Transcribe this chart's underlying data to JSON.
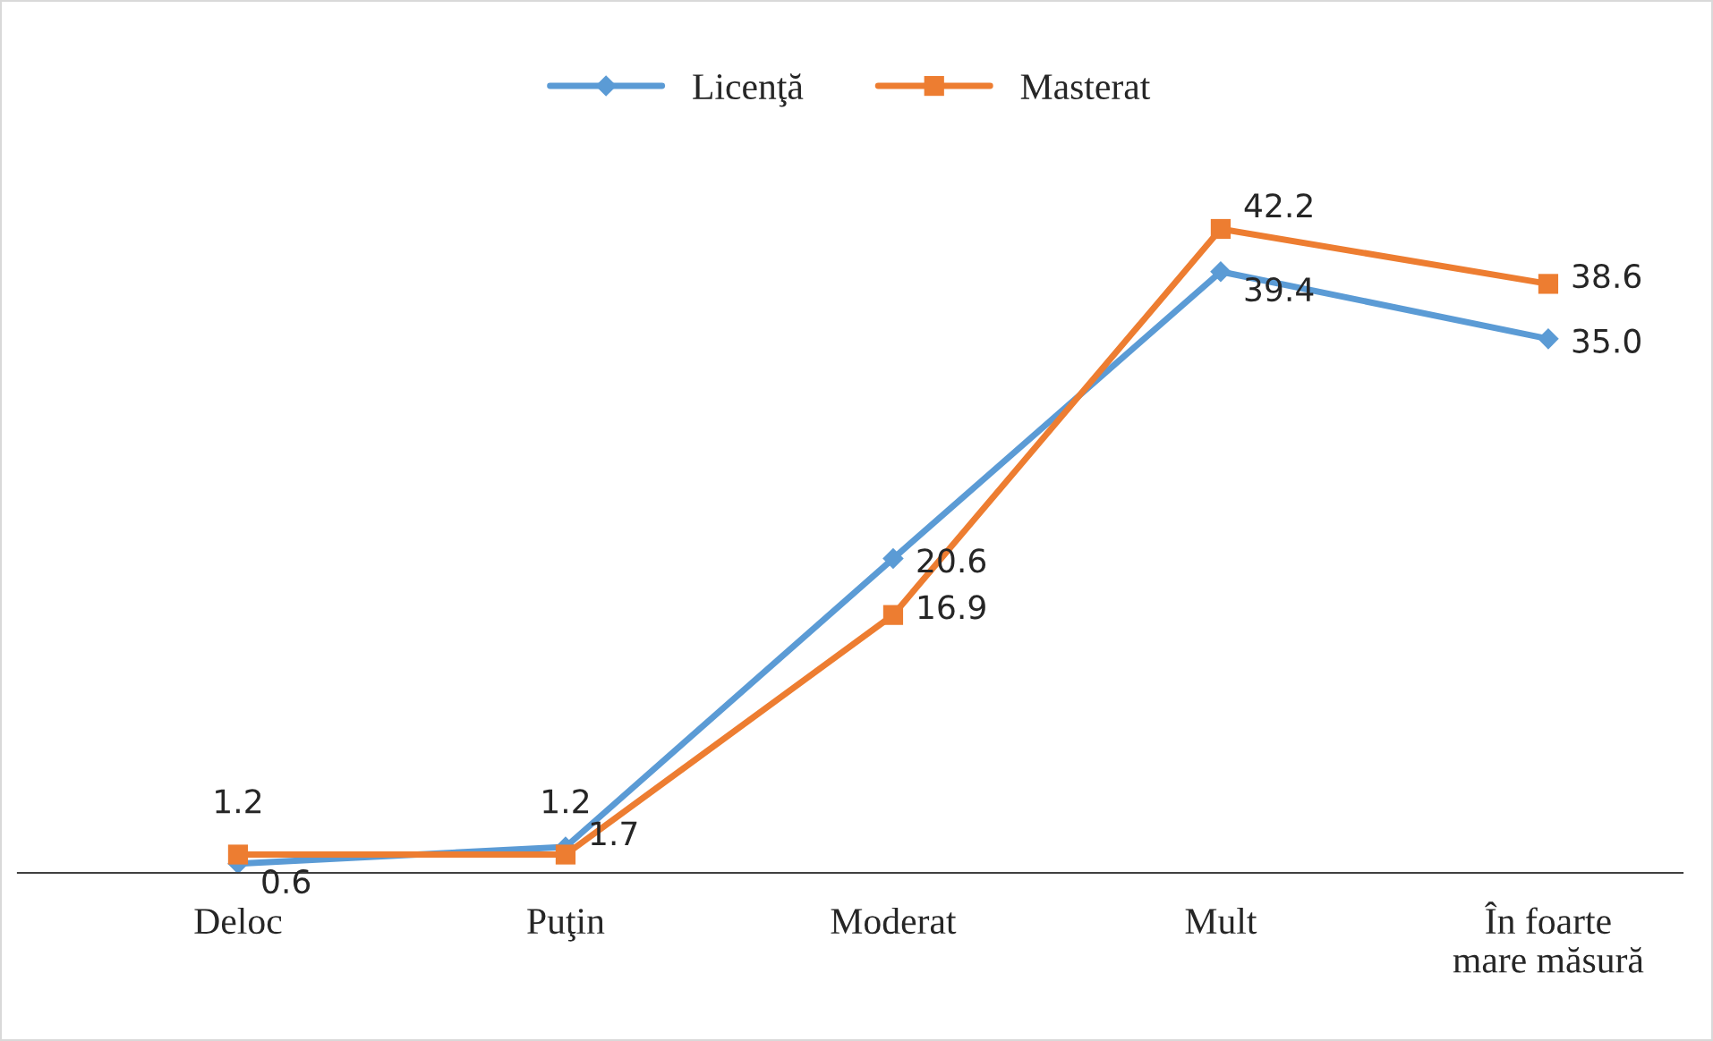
{
  "chart_data": {
    "type": "line",
    "categories": [
      "Deloc",
      "Puţin",
      "Moderat",
      "Mult",
      "În foarte\nmare măsură"
    ],
    "series": [
      {
        "name": "Licenţă",
        "color": "#5b9bd5",
        "marker": "diamond",
        "values": [
          0.6,
          1.7,
          20.6,
          39.4,
          35.0
        ],
        "value_labels": [
          "0.6",
          "1.7",
          "20.6",
          "39.4",
          "35.0"
        ]
      },
      {
        "name": "Masterat",
        "color": "#ed7d31",
        "marker": "square",
        "values": [
          1.2,
          1.2,
          16.9,
          42.2,
          38.6
        ],
        "value_labels": [
          "1.2",
          "1.2",
          "16.9",
          "42.2",
          "38.6"
        ]
      }
    ],
    "legend": "top",
    "grid": false,
    "tick_labels": "x"
  }
}
